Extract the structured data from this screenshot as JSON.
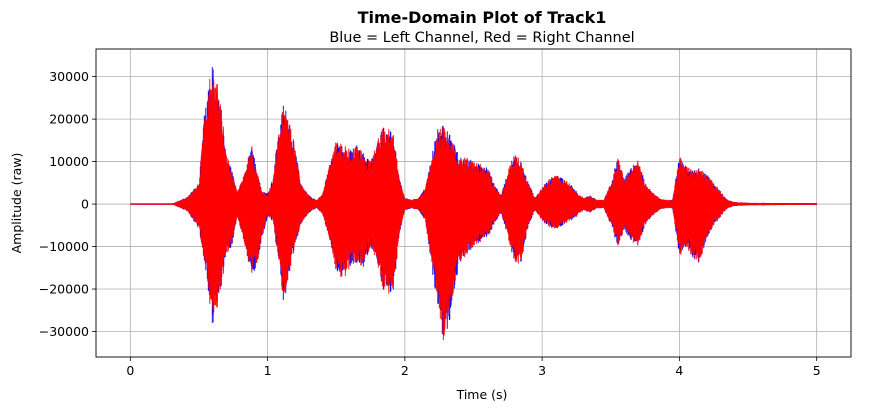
{
  "chart_data": {
    "type": "line",
    "title": "Time-Domain Plot of Track1",
    "subtitle": "Blue = Left Channel, Red = Right Channel",
    "xlabel": "Time (s)",
    "ylabel": "Amplitude (raw)",
    "xlim": [
      -0.25,
      5.25
    ],
    "ylim": [
      -36000,
      36500
    ],
    "x_ticks": [
      0,
      1,
      2,
      3,
      4,
      5
    ],
    "x_tick_labels": [
      "0",
      "1",
      "2",
      "3",
      "4",
      "5"
    ],
    "y_ticks": [
      -30000,
      -20000,
      -10000,
      0,
      10000,
      20000,
      30000
    ],
    "y_tick_labels": [
      "−30000",
      "−20000",
      "−10000",
      "0",
      "10000",
      "20000",
      "30000"
    ],
    "grid": true,
    "series": [
      {
        "name": "Left Channel",
        "color": "#0000ff",
        "t": [
          0,
          0.3,
          0.42,
          0.5,
          0.54,
          0.58,
          0.6,
          0.62,
          0.65,
          0.7,
          0.74,
          0.78,
          0.85,
          0.88,
          0.92,
          0.96,
          1.0,
          1.04,
          1.08,
          1.12,
          1.16,
          1.2,
          1.24,
          1.28,
          1.32,
          1.36,
          1.4,
          1.45,
          1.5,
          1.55,
          1.6,
          1.65,
          1.7,
          1.75,
          1.8,
          1.84,
          1.88,
          1.92,
          1.96,
          2.0,
          2.05,
          2.1,
          2.15,
          2.2,
          2.24,
          2.28,
          2.32,
          2.36,
          2.4,
          2.45,
          2.5,
          2.55,
          2.6,
          2.65,
          2.7,
          2.75,
          2.8,
          2.85,
          2.9,
          2.95,
          3.0,
          3.05,
          3.1,
          3.15,
          3.2,
          3.25,
          3.3,
          3.35,
          3.4,
          3.45,
          3.5,
          3.55,
          3.6,
          3.65,
          3.7,
          3.75,
          3.8,
          3.85,
          3.9,
          3.95,
          4.0,
          4.05,
          4.1,
          4.15,
          4.2,
          4.25,
          4.3,
          4.35,
          4.4,
          4.5,
          5.0
        ],
        "max": [
          0,
          0,
          1800,
          5000,
          22000,
          30000,
          33000,
          31000,
          26000,
          12000,
          8000,
          3000,
          9000,
          15000,
          8000,
          3000,
          2500,
          6000,
          18000,
          24000,
          19000,
          14000,
          5000,
          3000,
          1500,
          1000,
          2500,
          9000,
          15000,
          14000,
          13000,
          14000,
          12000,
          10000,
          15000,
          18000,
          18500,
          16000,
          6000,
          1500,
          1000,
          1500,
          4000,
          12000,
          18000,
          19000,
          17000,
          14000,
          11000,
          11000,
          10000,
          9500,
          9000,
          5000,
          2000,
          8000,
          12000,
          10000,
          5000,
          1500,
          4000,
          6000,
          7000,
          6000,
          5000,
          3000,
          1500,
          2000,
          1000,
          1000,
          5000,
          11000,
          6000,
          9000,
          10500,
          5000,
          3000,
          1500,
          1000,
          1000,
          11500,
          9000,
          8000,
          8500,
          7000,
          5000,
          3000,
          1000,
          500,
          300,
          200
        ],
        "min": [
          0,
          0,
          -1800,
          -6000,
          -14000,
          -24000,
          -29000,
          -27000,
          -22000,
          -12000,
          -10000,
          -3000,
          -12000,
          -17000,
          -15000,
          -8000,
          -3000,
          -4000,
          -14000,
          -24000,
          -16000,
          -10000,
          -5000,
          -3000,
          -1500,
          -1000,
          -2500,
          -8000,
          -16000,
          -18000,
          -15000,
          -14000,
          -15000,
          -10000,
          -14000,
          -20000,
          -22000,
          -20000,
          -7000,
          -1500,
          -1000,
          -1500,
          -4000,
          -16000,
          -24000,
          -33000,
          -29000,
          -20000,
          -14000,
          -12000,
          -10000,
          -9000,
          -8000,
          -5000,
          -2000,
          -8000,
          -14000,
          -14000,
          -5000,
          -1500,
          -4000,
          -5500,
          -6000,
          -5000,
          -4000,
          -3000,
          -1500,
          -2000,
          -1000,
          -1000,
          -5000,
          -10000,
          -6000,
          -9000,
          -10000,
          -5000,
          -3000,
          -1500,
          -1000,
          -1000,
          -12500,
          -10000,
          -13000,
          -14000,
          -8000,
          -5000,
          -3000,
          -1000,
          -500,
          -300,
          -200
        ]
      },
      {
        "name": "Right Channel",
        "color": "#ff0000",
        "t": [
          0,
          0.3,
          0.42,
          0.5,
          0.54,
          0.58,
          0.6,
          0.62,
          0.65,
          0.7,
          0.74,
          0.78,
          0.85,
          0.88,
          0.92,
          0.96,
          1.0,
          1.04,
          1.08,
          1.12,
          1.16,
          1.2,
          1.24,
          1.28,
          1.32,
          1.36,
          1.4,
          1.45,
          1.5,
          1.55,
          1.6,
          1.65,
          1.7,
          1.75,
          1.8,
          1.84,
          1.88,
          1.92,
          1.96,
          2.0,
          2.05,
          2.1,
          2.15,
          2.2,
          2.24,
          2.28,
          2.32,
          2.36,
          2.4,
          2.45,
          2.5,
          2.55,
          2.6,
          2.65,
          2.7,
          2.75,
          2.8,
          2.85,
          2.9,
          2.95,
          3.0,
          3.05,
          3.1,
          3.15,
          3.2,
          3.25,
          3.3,
          3.35,
          3.4,
          3.45,
          3.5,
          3.55,
          3.6,
          3.65,
          3.7,
          3.75,
          3.8,
          3.85,
          3.9,
          3.95,
          4.0,
          4.05,
          4.1,
          4.15,
          4.2,
          4.25,
          4.3,
          4.35,
          4.4,
          4.5,
          5.0
        ],
        "max": [
          0,
          0,
          1800,
          5000,
          22000,
          30000,
          33000,
          31000,
          26000,
          12000,
          8000,
          3000,
          9000,
          15000,
          8000,
          3000,
          2500,
          6000,
          18000,
          24000,
          19000,
          14000,
          5000,
          3000,
          1500,
          1000,
          2500,
          9000,
          15000,
          14000,
          13000,
          14000,
          12000,
          10000,
          15000,
          18000,
          18500,
          16000,
          6000,
          1500,
          1000,
          1500,
          4000,
          12000,
          18000,
          19000,
          17000,
          14000,
          11000,
          11000,
          10000,
          9500,
          9000,
          5000,
          2000,
          8000,
          12000,
          10000,
          5000,
          1500,
          4000,
          6000,
          7000,
          6000,
          5000,
          3000,
          1500,
          2000,
          1000,
          1000,
          5000,
          11000,
          6000,
          9000,
          10500,
          5000,
          3000,
          1500,
          1000,
          1000,
          11500,
          9000,
          8000,
          8500,
          7000,
          5000,
          3000,
          1000,
          500,
          300,
          200
        ],
        "min": [
          0,
          0,
          -1800,
          -6000,
          -14000,
          -24000,
          -29000,
          -27000,
          -22000,
          -12000,
          -10000,
          -3000,
          -12000,
          -17000,
          -15000,
          -8000,
          -3000,
          -4000,
          -14000,
          -24000,
          -16000,
          -10000,
          -5000,
          -3000,
          -1500,
          -1000,
          -2500,
          -8000,
          -16000,
          -18000,
          -15000,
          -14000,
          -15000,
          -10000,
          -14000,
          -20000,
          -22000,
          -20000,
          -7000,
          -1500,
          -1000,
          -1500,
          -4000,
          -16000,
          -24000,
          -33000,
          -29000,
          -20000,
          -14000,
          -12000,
          -10000,
          -9000,
          -8000,
          -5000,
          -2000,
          -8000,
          -14000,
          -14000,
          -5000,
          -1500,
          -4000,
          -5500,
          -6000,
          -5000,
          -4000,
          -3000,
          -1500,
          -2000,
          -1000,
          -1000,
          -5000,
          -10000,
          -6000,
          -9000,
          -10000,
          -5000,
          -3000,
          -1500,
          -1000,
          -1000,
          -12500,
          -10000,
          -13000,
          -14000,
          -8000,
          -5000,
          -3000,
          -1000,
          -500,
          -300,
          -200
        ]
      }
    ]
  }
}
